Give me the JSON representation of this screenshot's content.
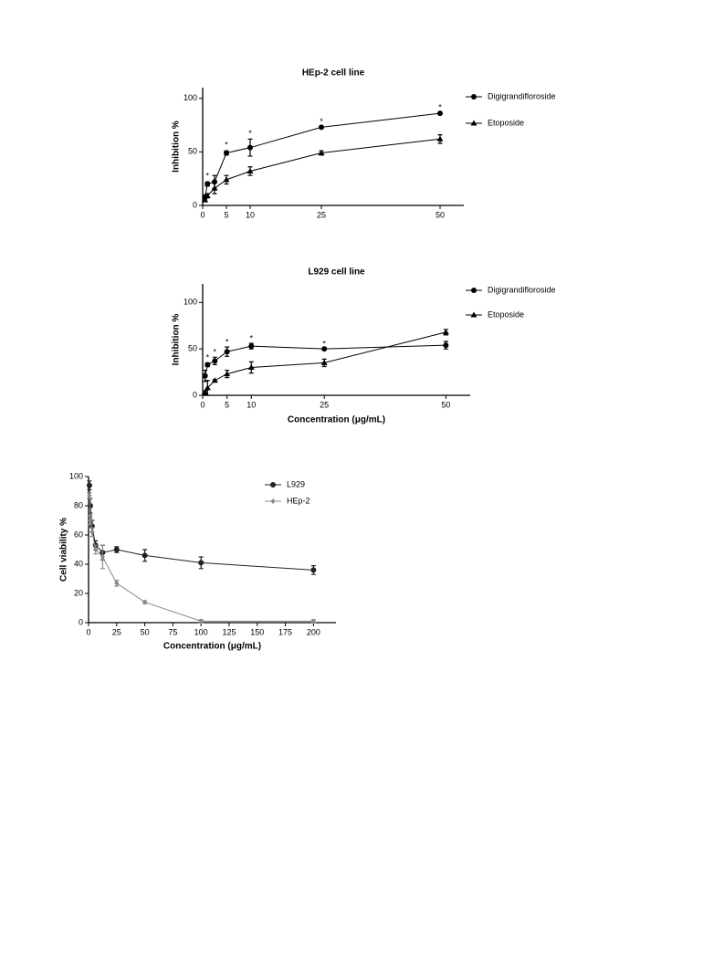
{
  "chart_data": [
    {
      "type": "line",
      "title": "HEp-2 cell line",
      "ylabel": "Inhibition %",
      "x": [
        0.5,
        1,
        2.5,
        5,
        10,
        25,
        50
      ],
      "series": [
        {
          "name": "Digigrandifloroside",
          "color": "#000000",
          "marker": "circle",
          "values": [
            8,
            20,
            22,
            49,
            54,
            73,
            86
          ],
          "errors": [
            1,
            2,
            6,
            2,
            8,
            1,
            1
          ]
        },
        {
          "name": "Etoposide",
          "color": "#000000",
          "marker": "triangle",
          "values": [
            5,
            9,
            16,
            24,
            32,
            49,
            62
          ],
          "errors": [
            1,
            2,
            5,
            4,
            4,
            2,
            4
          ]
        }
      ],
      "annotations": [
        {
          "x": 1,
          "y": 27,
          "text": "*"
        },
        {
          "x": 5,
          "y": 56,
          "text": "*"
        },
        {
          "x": 10,
          "y": 67,
          "text": "*"
        },
        {
          "x": 25,
          "y": 78,
          "text": "*"
        },
        {
          "x": 50,
          "y": 91,
          "text": "*"
        }
      ],
      "xlim": [
        0,
        55
      ],
      "xticks": [
        0,
        5,
        10,
        25,
        50
      ],
      "ylim": [
        0,
        110
      ],
      "yticks": [
        0,
        50,
        100
      ],
      "legend": "right"
    },
    {
      "type": "line",
      "title": "L929 cell line",
      "ylabel": "Inhibition %",
      "xlabel": "Concentration (μg/mL)",
      "x": [
        0.5,
        1,
        2.5,
        5,
        10,
        25,
        50
      ],
      "series": [
        {
          "name": "Digigrandifloroside",
          "color": "#000000",
          "marker": "circle",
          "values": [
            21,
            33,
            37,
            47,
            53,
            50,
            54
          ],
          "errors": [
            6,
            2,
            4,
            5,
            3,
            1,
            4
          ]
        },
        {
          "name": "Etoposide",
          "color": "#000000",
          "marker": "triangle",
          "values": [
            3,
            8,
            16,
            23,
            30,
            35,
            68
          ],
          "errors": [
            2,
            8,
            1,
            4,
            6,
            4,
            3
          ]
        }
      ],
      "annotations": [
        {
          "x": 1,
          "y": 40,
          "text": "*"
        },
        {
          "x": 2.5,
          "y": 46,
          "text": "*"
        },
        {
          "x": 5,
          "y": 57,
          "text": "*"
        },
        {
          "x": 10,
          "y": 61,
          "text": "*"
        },
        {
          "x": 25,
          "y": 55,
          "text": "*"
        }
      ],
      "xlim": [
        0,
        55
      ],
      "xticks": [
        0,
        5,
        10,
        25,
        50
      ],
      "ylim": [
        0,
        120
      ],
      "yticks": [
        0,
        50,
        100
      ],
      "legend": "right"
    },
    {
      "type": "line",
      "ylabel": "Cell viability %",
      "xlabel": "Concentration (μg/mL)",
      "x": [
        0.78,
        1.56,
        3.13,
        6.25,
        12.5,
        25,
        50,
        100,
        200
      ],
      "series": [
        {
          "name": "L929",
          "color": "#222222",
          "marker": "circle",
          "values": [
            94,
            80,
            66,
            53,
            48,
            50,
            46,
            41,
            36
          ],
          "errors": [
            3,
            5,
            4,
            3,
            5,
            2,
            4,
            4,
            3
          ]
        },
        {
          "name": "HEp-2",
          "color": "#888888",
          "marker": "diamond",
          "values": [
            87,
            70,
            62,
            50,
            45,
            27,
            14,
            1,
            1
          ],
          "errors": [
            2,
            3,
            3,
            3,
            8,
            2,
            1,
            1,
            1
          ]
        }
      ],
      "xlim": [
        0,
        220
      ],
      "xticks": [
        0,
        25,
        50,
        75,
        100,
        125,
        150,
        175,
        200
      ],
      "ylim": [
        0,
        100
      ],
      "yticks": [
        0,
        20,
        40,
        60,
        80,
        100
      ],
      "legend": "top-right"
    }
  ]
}
